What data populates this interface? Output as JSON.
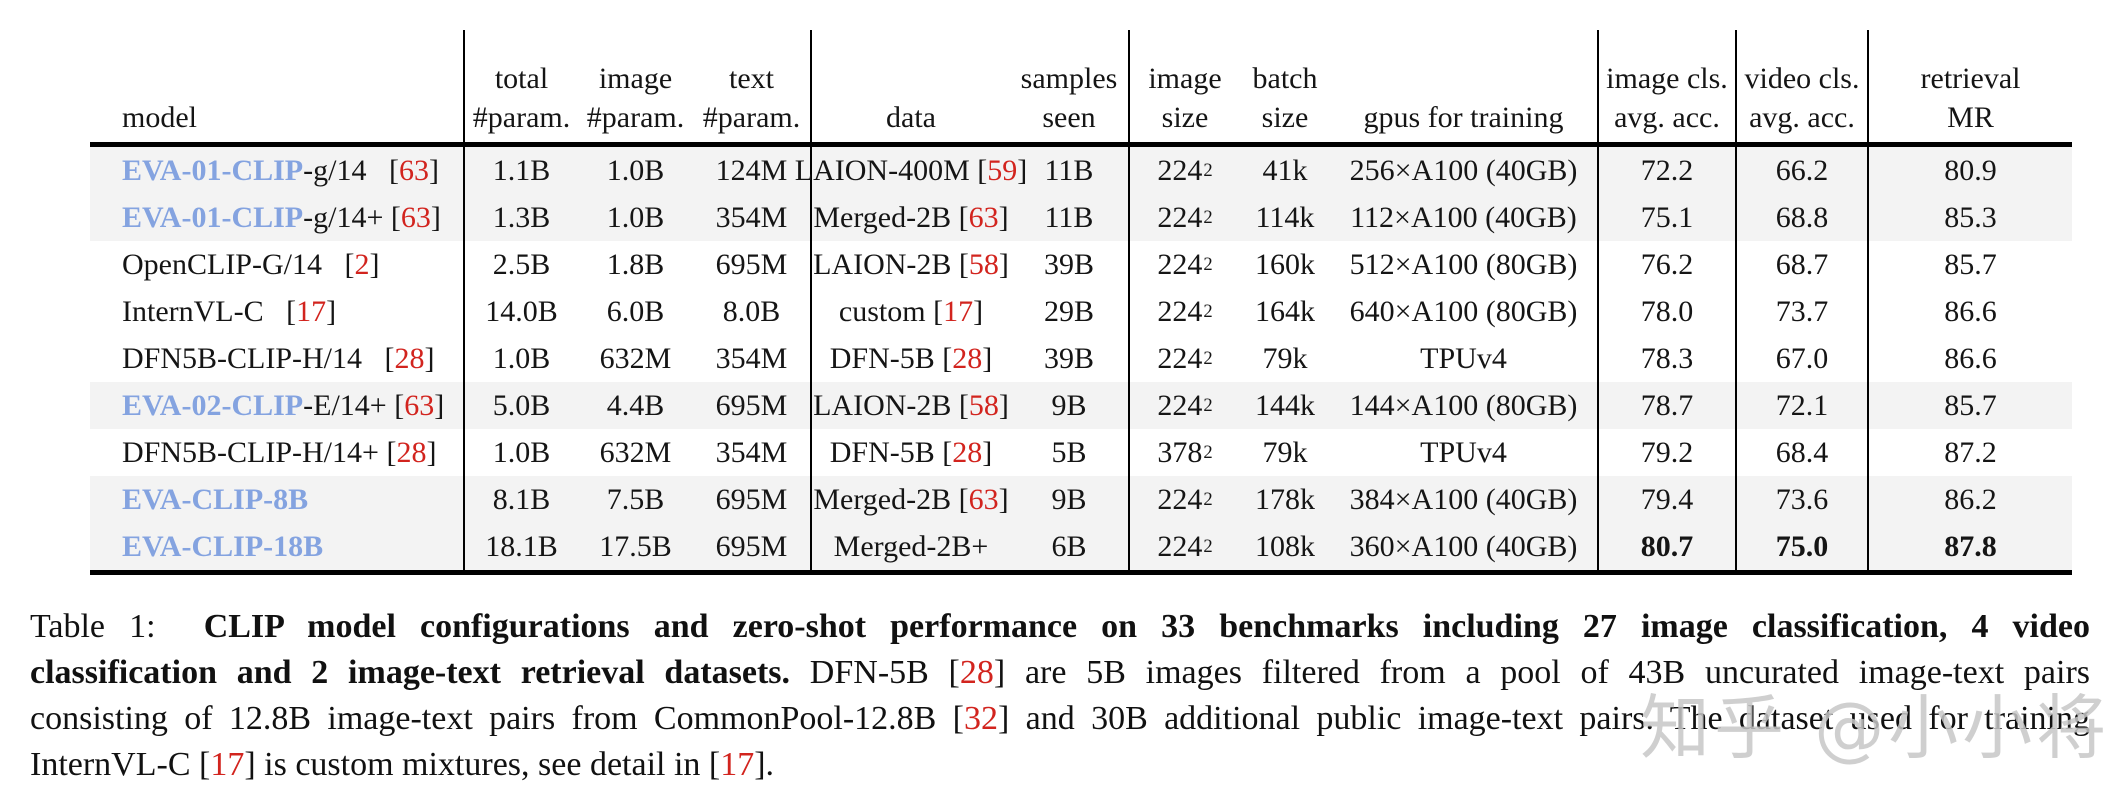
{
  "colors": {
    "brand_blue": "#84a3e0",
    "cite_red": "#d2241e",
    "stripe_gray": "#f3f3f3"
  },
  "table": {
    "header": {
      "columns": [
        {
          "id": "model",
          "line1": "",
          "line2": "model"
        },
        {
          "id": "total-param",
          "line1": "total",
          "line2": "#param."
        },
        {
          "id": "image-param",
          "line1": "image",
          "line2": "#param."
        },
        {
          "id": "text-param",
          "line1": "text",
          "line2": "#param."
        },
        {
          "id": "data",
          "line1": "",
          "line2": "data"
        },
        {
          "id": "samples-seen",
          "line1": "samples",
          "line2": "seen"
        },
        {
          "id": "image-size",
          "line1": "image",
          "line2": "size"
        },
        {
          "id": "batch-size",
          "line1": "batch",
          "line2": "size"
        },
        {
          "id": "gpus",
          "line1": "",
          "line2": "gpus for training"
        },
        {
          "id": "image-cls",
          "line1": "image cls.",
          "line2": "avg. acc."
        },
        {
          "id": "video-cls",
          "line1": "video cls.",
          "line2": "avg. acc."
        },
        {
          "id": "retrieval",
          "line1": "retrieval",
          "line2": "MR"
        }
      ]
    },
    "rows": [
      {
        "model": {
          "brand": "EVA-01-CLIP",
          "variant": "-g/14",
          "spacer": "   ",
          "cite": "63"
        },
        "total_param": "1.1B",
        "image_param": "1.0B",
        "text_param": "124M",
        "data": {
          "text": "LAION-400M",
          "cite": "59"
        },
        "samples_seen": "11B",
        "image_size": {
          "base": "224",
          "exp": "2"
        },
        "batch_size": "41k",
        "gpus": "256×A100 (40GB)",
        "image_cls": "72.2",
        "video_cls": "66.2",
        "retrieval_mr": "80.9",
        "highlight": true,
        "bold_metrics": false
      },
      {
        "model": {
          "brand": "EVA-01-CLIP",
          "variant": "-g/14+",
          "spacer": " ",
          "cite": "63"
        },
        "total_param": "1.3B",
        "image_param": "1.0B",
        "text_param": "354M",
        "data": {
          "text": "Merged-2B",
          "cite": "63"
        },
        "samples_seen": "11B",
        "image_size": {
          "base": "224",
          "exp": "2"
        },
        "batch_size": "114k",
        "gpus": "112×A100 (40GB)",
        "image_cls": "75.1",
        "video_cls": "68.8",
        "retrieval_mr": "85.3",
        "highlight": true,
        "bold_metrics": false
      },
      {
        "model": {
          "brand": "",
          "variant": "OpenCLIP-G/14",
          "spacer": "   ",
          "cite": "2"
        },
        "total_param": "2.5B",
        "image_param": "1.8B",
        "text_param": "695M",
        "data": {
          "text": "LAION-2B",
          "cite": "58"
        },
        "samples_seen": "39B",
        "image_size": {
          "base": "224",
          "exp": "2"
        },
        "batch_size": "160k",
        "gpus": "512×A100 (80GB)",
        "image_cls": "76.2",
        "video_cls": "68.7",
        "retrieval_mr": "85.7",
        "highlight": false,
        "bold_metrics": false
      },
      {
        "model": {
          "brand": "",
          "variant": "InternVL-C",
          "spacer": "   ",
          "cite": "17"
        },
        "total_param": "14.0B",
        "image_param": "6.0B",
        "text_param": "8.0B",
        "data": {
          "text": "custom",
          "cite": "17"
        },
        "samples_seen": "29B",
        "image_size": {
          "base": "224",
          "exp": "2"
        },
        "batch_size": "164k",
        "gpus": "640×A100 (80GB)",
        "image_cls": "78.0",
        "video_cls": "73.7",
        "retrieval_mr": "86.6",
        "highlight": false,
        "bold_metrics": false
      },
      {
        "model": {
          "brand": "",
          "variant": "DFN5B-CLIP-H/14",
          "spacer": "   ",
          "cite": "28"
        },
        "total_param": "1.0B",
        "image_param": "632M",
        "text_param": "354M",
        "data": {
          "text": "DFN-5B",
          "cite": "28"
        },
        "samples_seen": "39B",
        "image_size": {
          "base": "224",
          "exp": "2"
        },
        "batch_size": "79k",
        "gpus": "TPUv4",
        "image_cls": "78.3",
        "video_cls": "67.0",
        "retrieval_mr": "86.6",
        "highlight": false,
        "bold_metrics": false
      },
      {
        "model": {
          "brand": "EVA-02-CLIP",
          "variant": "-E/14+",
          "spacer": " ",
          "cite": "63"
        },
        "total_param": "5.0B",
        "image_param": "4.4B",
        "text_param": "695M",
        "data": {
          "text": "LAION-2B",
          "cite": "58"
        },
        "samples_seen": "9B",
        "image_size": {
          "base": "224",
          "exp": "2"
        },
        "batch_size": "144k",
        "gpus": "144×A100 (80GB)",
        "image_cls": "78.7",
        "video_cls": "72.1",
        "retrieval_mr": "85.7",
        "highlight": true,
        "bold_metrics": false
      },
      {
        "model": {
          "brand": "",
          "variant": "DFN5B-CLIP-H/14+",
          "spacer": " ",
          "cite": "28"
        },
        "total_param": "1.0B",
        "image_param": "632M",
        "text_param": "354M",
        "data": {
          "text": "DFN-5B",
          "cite": "28"
        },
        "samples_seen": "5B",
        "image_size": {
          "base": "378",
          "exp": "2"
        },
        "batch_size": "79k",
        "gpus": "TPUv4",
        "image_cls": "79.2",
        "video_cls": "68.4",
        "retrieval_mr": "87.2",
        "highlight": false,
        "bold_metrics": false
      },
      {
        "model": {
          "brand": "EVA-CLIP-8B",
          "variant": "",
          "spacer": "",
          "cite": ""
        },
        "total_param": "8.1B",
        "image_param": "7.5B",
        "text_param": "695M",
        "data": {
          "text": "Merged-2B",
          "cite": "63"
        },
        "samples_seen": "9B",
        "image_size": {
          "base": "224",
          "exp": "2"
        },
        "batch_size": "178k",
        "gpus": "384×A100 (40GB)",
        "image_cls": "79.4",
        "video_cls": "73.6",
        "retrieval_mr": "86.2",
        "highlight": true,
        "bold_metrics": false
      },
      {
        "model": {
          "brand": "EVA-CLIP-18B",
          "variant": "",
          "spacer": "",
          "cite": ""
        },
        "total_param": "18.1B",
        "image_param": "17.5B",
        "text_param": "695M",
        "data": {
          "text": "Merged-2B+",
          "cite": ""
        },
        "samples_seen": "6B",
        "image_size": {
          "base": "224",
          "exp": "2"
        },
        "batch_size": "108k",
        "gpus": "360×A100 (40GB)",
        "image_cls": "80.7",
        "video_cls": "75.0",
        "retrieval_mr": "87.8",
        "highlight": true,
        "bold_metrics": true
      }
    ]
  },
  "caption": {
    "lines": [
      {
        "justify": true,
        "segments": [
          {
            "t": "Table 1:  "
          },
          {
            "t": "CLIP model configurations and zero-shot performance on 33 benchmarks including 27 image classification, 4 video",
            "b": true
          }
        ]
      },
      {
        "justify": true,
        "segments": [
          {
            "t": "classification and 2 image-text retrieval datasets.",
            "b": true
          },
          {
            "t": " DFN-5B ["
          },
          {
            "t": "28",
            "r": true
          },
          {
            "t": "] are 5B images filtered from a pool of 43B uncurated image-text pairs"
          }
        ]
      },
      {
        "justify": true,
        "segments": [
          {
            "t": "consisting of 12.8B image-text pairs from CommonPool-12.8B ["
          },
          {
            "t": "32",
            "r": true
          },
          {
            "t": "] and 30B additional public image-text pairs. The dataset used for training"
          }
        ]
      },
      {
        "justify": false,
        "segments": [
          {
            "t": "InternVL-C ["
          },
          {
            "t": "17",
            "r": true
          },
          {
            "t": "] is custom mixtures, see detail in ["
          },
          {
            "t": "17",
            "r": true
          },
          {
            "t": "]."
          }
        ]
      }
    ]
  },
  "watermark": {
    "text": "知乎 @小小将"
  }
}
